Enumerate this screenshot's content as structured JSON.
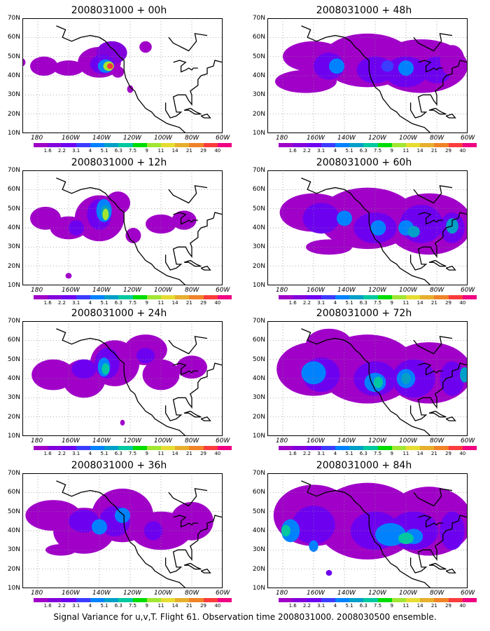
{
  "caption": "Signal Variance for u,v,T. Flight 61. Observation time 2008031000. 2008030500 ensemble.",
  "colorbar": {
    "labels": [
      "1.6",
      "2.2",
      "3.1",
      "4",
      "5.1",
      "6.3",
      "7.5",
      "9",
      "11",
      "14",
      "21",
      "29",
      "40"
    ],
    "colors": [
      "#a000c8",
      "#8200dc",
      "#6e00f0",
      "#3c3cff",
      "#0082ff",
      "#00a0c8",
      "#00c8a0",
      "#00dc00",
      "#a0e632",
      "#e6dc32",
      "#e6af2d",
      "#f08228",
      "#fa3c3c",
      "#f00082"
    ]
  },
  "axes": {
    "lat_labels": [
      "70N",
      "60N",
      "50N",
      "40N",
      "30N",
      "20N",
      "10N"
    ],
    "lon_labels": [
      "180",
      "160W",
      "140W",
      "120W",
      "100W",
      "80W",
      "60W"
    ],
    "lon_range": [
      -190,
      -60
    ],
    "lat_range": [
      10,
      70
    ]
  },
  "colors": {
    "purple": "#a000c8",
    "violet": "#8200dc",
    "indigo": "#6e00f0",
    "blue": "#3c3cff",
    "azure": "#0082ff",
    "cyan": "#00a0c8",
    "teal": "#00c8a0",
    "green": "#00dc00",
    "lime": "#a0e632",
    "red": "#fa3c3c",
    "magenta": "#f00082"
  },
  "panels": [
    {
      "title": "2008031000 + 00h",
      "col": 0,
      "row": 0
    },
    {
      "title": "2008031000 + 48h",
      "col": 1,
      "row": 0
    },
    {
      "title": "2008031000 + 12h",
      "col": 0,
      "row": 1
    },
    {
      "title": "2008031000 + 60h",
      "col": 1,
      "row": 1
    },
    {
      "title": "2008031000 + 24h",
      "col": 0,
      "row": 2
    },
    {
      "title": "2008031000 + 72h",
      "col": 1,
      "row": 2
    },
    {
      "title": "2008031000 + 36h",
      "col": 0,
      "row": 3
    },
    {
      "title": "2008031000 + 84h",
      "col": 1,
      "row": 3
    }
  ]
}
